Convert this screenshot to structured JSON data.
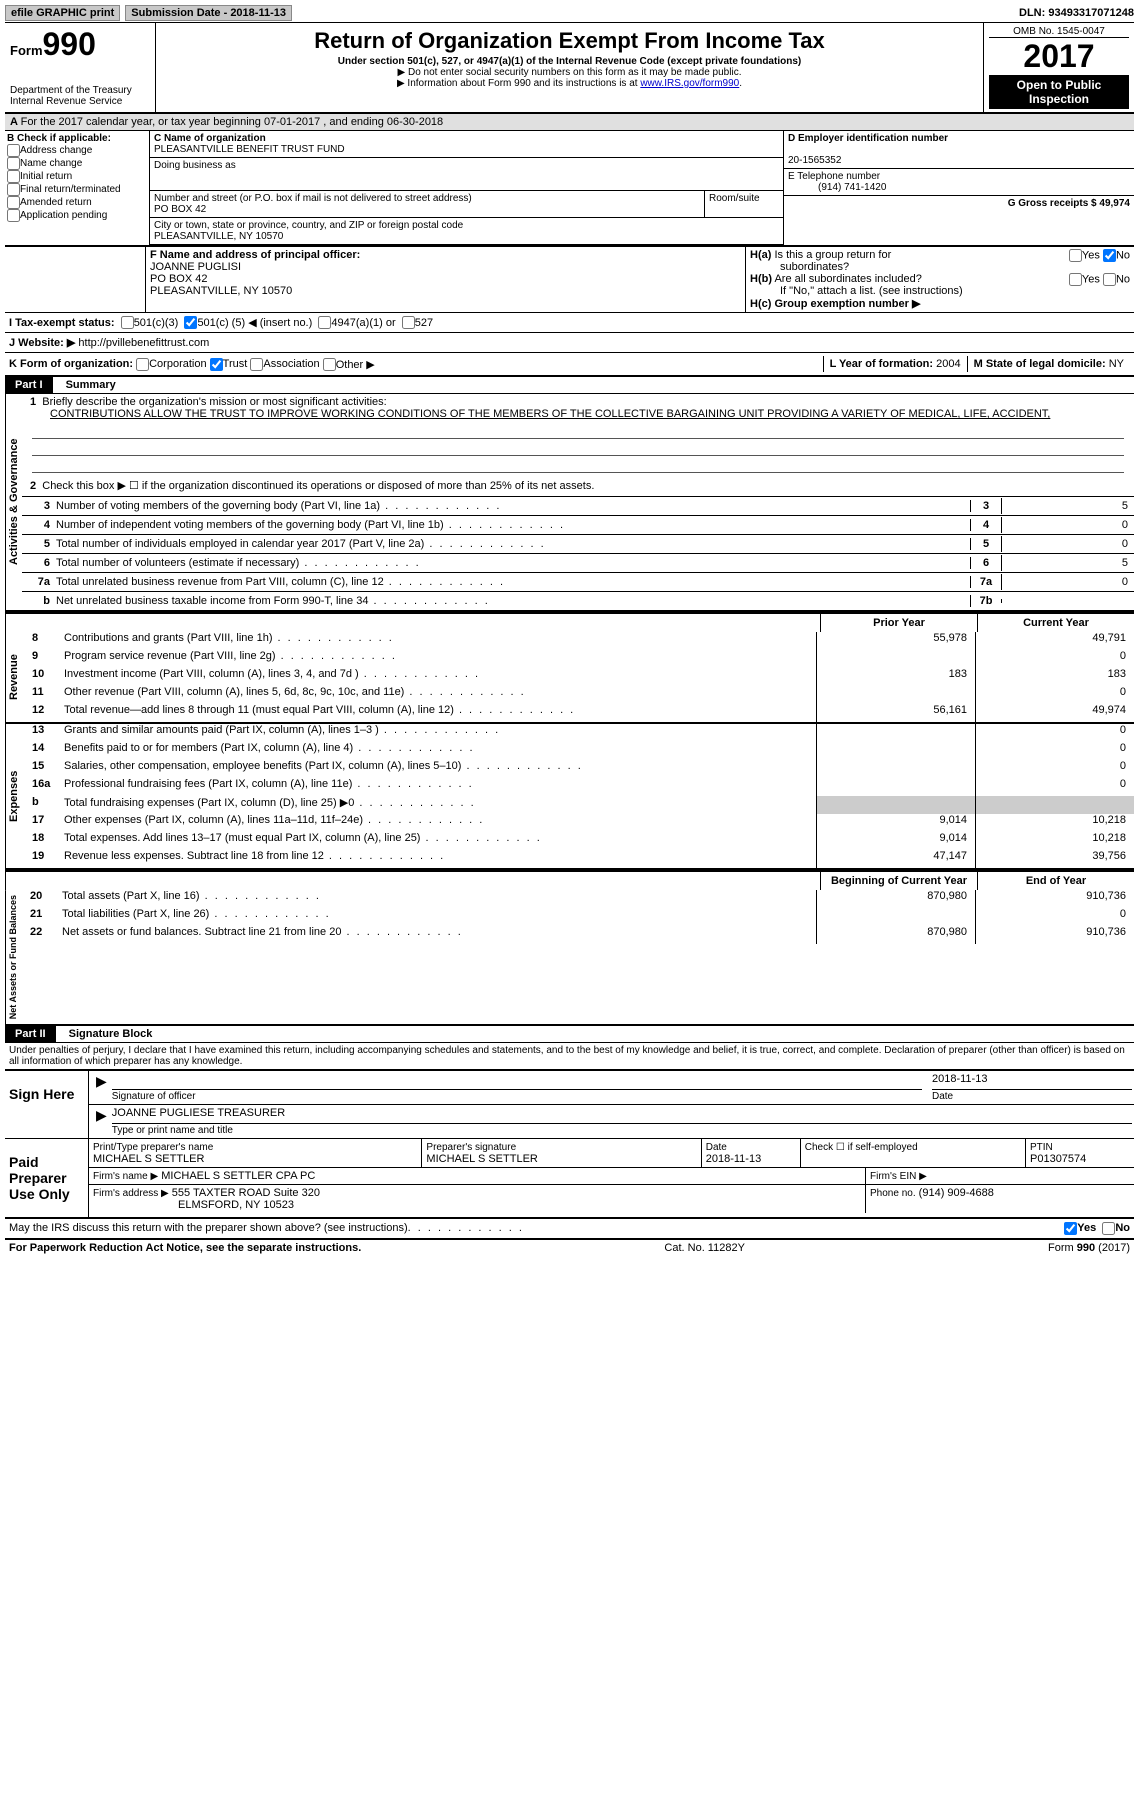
{
  "top_bar": {
    "efile": "efile GRAPHIC print",
    "submission": "Submission Date - 2018-11-13",
    "dln": "DLN: 93493317071248"
  },
  "header": {
    "form_small": "Form",
    "form": "990",
    "dept": "Department of the Treasury\nInternal Revenue Service",
    "title": "Return of Organization Exempt From Income Tax",
    "sub1": "Under section 501(c), 527, or 4947(a)(1) of the Internal Revenue Code (except private foundations)",
    "sub2": "▶ Do not enter social security numbers on this form as it may be made public.",
    "sub3": "▶ Information about Form 990 and its instructions is at ",
    "sub3_link": "www.IRS.gov/form990",
    "omb": "OMB No. 1545-0047",
    "year": "2017",
    "open": "Open to Public Inspection"
  },
  "section_a": {
    "text": "For the 2017 calendar year, or tax year beginning 07-01-2017    , and ending 06-30-2018"
  },
  "entity": {
    "b_label": "B Check if applicable:",
    "check_addr": "Address change",
    "check_name": "Name change",
    "check_init": "Initial return",
    "check_final": "Final return/terminated",
    "check_amend": "Amended return",
    "check_app": "Application pending",
    "c_label": "C Name of organization",
    "c_value": "PLEASANTVILLE BENEFIT TRUST FUND",
    "dba": "Doing business as",
    "street_label": "Number and street (or P.O. box if mail is not delivered to street address)",
    "room": "Room/suite",
    "street": "PO BOX 42",
    "city_label": "City or town, state or province, country, and ZIP or foreign postal code",
    "city": "PLEASANTVILLE, NY  10570",
    "d_label": "D Employer identification number",
    "d_value": "20-1565352",
    "e_label": "E Telephone number",
    "e_value": "(914) 741-1420",
    "g_label": "G Gross receipts $",
    "g_value": "49,974",
    "f_label": "F Name and address of principal officer:",
    "f_name": "JOANNE PUGLISI",
    "f_street": "PO BOX 42",
    "f_city": "PLEASANTVILLE, NY  10570",
    "ha_label": "H(a) Is this a group return for subordinates?",
    "hb_label": "H(b) Are all subordinates included?",
    "hb_note": "If \"No,\" attach a list. (see instructions)",
    "hc_label": "H(c) Group exemption number ▶"
  },
  "status": {
    "i_label": "I  Tax-exempt status:",
    "o1": "501(c)(3)",
    "o2_pre": "501(c) (",
    "o2_val": "5",
    "o2_post": ") ◀ (insert no.)",
    "o3": "4947(a)(1) or",
    "o4": "527"
  },
  "website": {
    "label": "J  Website: ▶",
    "value": "http://pvillebenefittrust.com"
  },
  "korg": {
    "label": "K Form of organization:",
    "o1": "Corporation",
    "o2": "Trust",
    "o3": "Association",
    "o4": "Other ▶",
    "l_label": "L Year of formation:",
    "l_val": "2004",
    "m_label": "M State of legal domicile:",
    "m_val": "NY"
  },
  "part1": {
    "header": "Part I",
    "title": "Summary",
    "line1_label": "Briefly describe the organization's mission or most significant activities:",
    "line1_val": "CONTRIBUTIONS ALLOW THE TRUST TO IMPROVE WORKING CONDITIONS OF THE MEMBERS OF THE COLLECTIVE BARGAINING UNIT PROVIDING A VARIETY OF MEDICAL, LIFE, ACCIDENT,",
    "line2": "Check this box ▶ ☐ if the organization discontinued its operations or disposed of more than 25% of its net assets.",
    "rot_ag": "Activities & Governance",
    "rot_rev": "Revenue",
    "rot_exp": "Expenses",
    "rot_net": "Net Assets or Fund Balances",
    "rows_ag": [
      {
        "n": "3",
        "t": "Number of voting members of the governing body (Part VI, line 1a)",
        "c": "3",
        "v": "5"
      },
      {
        "n": "4",
        "t": "Number of independent voting members of the governing body (Part VI, line 1b)",
        "c": "4",
        "v": "0"
      },
      {
        "n": "5",
        "t": "Total number of individuals employed in calendar year 2017 (Part V, line 2a)",
        "c": "5",
        "v": "0"
      },
      {
        "n": "6",
        "t": "Total number of volunteers (estimate if necessary)",
        "c": "6",
        "v": "5"
      },
      {
        "n": "7a",
        "t": "Total unrelated business revenue from Part VIII, column (C), line 12",
        "c": "7a",
        "v": "0"
      },
      {
        "n": "b",
        "t": "Net unrelated business taxable income from Form 990-T, line 34",
        "c": "7b",
        "v": ""
      }
    ],
    "col_prior": "Prior Year",
    "col_current": "Current Year",
    "rows_rev": [
      {
        "n": "8",
        "t": "Contributions and grants (Part VIII, line 1h)",
        "p": "55,978",
        "c": "49,791"
      },
      {
        "n": "9",
        "t": "Program service revenue (Part VIII, line 2g)",
        "p": "",
        "c": "0"
      },
      {
        "n": "10",
        "t": "Investment income (Part VIII, column (A), lines 3, 4, and 7d )",
        "p": "183",
        "c": "183"
      },
      {
        "n": "11",
        "t": "Other revenue (Part VIII, column (A), lines 5, 6d, 8c, 9c, 10c, and 11e)",
        "p": "",
        "c": "0"
      },
      {
        "n": "12",
        "t": "Total revenue—add lines 8 through 11 (must equal Part VIII, column (A), line 12)",
        "p": "56,161",
        "c": "49,974"
      }
    ],
    "rows_exp": [
      {
        "n": "13",
        "t": "Grants and similar amounts paid (Part IX, column (A), lines 1–3 )",
        "p": "",
        "c": "0"
      },
      {
        "n": "14",
        "t": "Benefits paid to or for members (Part IX, column (A), line 4)",
        "p": "",
        "c": "0"
      },
      {
        "n": "15",
        "t": "Salaries, other compensation, employee benefits (Part IX, column (A), lines 5–10)",
        "p": "",
        "c": "0"
      },
      {
        "n": "16a",
        "t": "Professional fundraising fees (Part IX, column (A), line 11e)",
        "p": "",
        "c": "0"
      },
      {
        "n": "b",
        "t": "Total fundraising expenses (Part IX, column (D), line 25) ▶0",
        "p": "gray",
        "c": "gray"
      },
      {
        "n": "17",
        "t": "Other expenses (Part IX, column (A), lines 11a–11d, 11f–24e)",
        "p": "9,014",
        "c": "10,218"
      },
      {
        "n": "18",
        "t": "Total expenses. Add lines 13–17 (must equal Part IX, column (A), line 25)",
        "p": "9,014",
        "c": "10,218"
      },
      {
        "n": "19",
        "t": "Revenue less expenses. Subtract line 18 from line 12",
        "p": "47,147",
        "c": "39,756"
      }
    ],
    "col_begin": "Beginning of Current Year",
    "col_end": "End of Year",
    "rows_na": [
      {
        "n": "20",
        "t": "Total assets (Part X, line 16)",
        "p": "870,980",
        "c": "910,736"
      },
      {
        "n": "21",
        "t": "Total liabilities (Part X, line 26)",
        "p": "",
        "c": "0"
      },
      {
        "n": "22",
        "t": "Net assets or fund balances. Subtract line 21 from line 20",
        "p": "870,980",
        "c": "910,736"
      }
    ]
  },
  "part2": {
    "header": "Part II",
    "title": "Signature Block",
    "decl": "Under penalties of perjury, I declare that I have examined this return, including accompanying schedules and statements, and to the best of my knowledge and belief, it is true, correct, and complete. Declaration of preparer (other than officer) is based on all information of which preparer has any knowledge.",
    "sign_here": "Sign Here",
    "sig_officer": "Signature of officer",
    "date": "Date",
    "date_val": "2018-11-13",
    "officer_name": "JOANNE PUGLIESE TREASURER",
    "type_name": "Type or print name and title",
    "paid": "Paid Preparer Use Only",
    "prep_name_l": "Print/Type preparer's name",
    "prep_name": "MICHAEL S SETTLER",
    "prep_sig_l": "Preparer's signature",
    "prep_sig": "MICHAEL S SETTLER",
    "prep_date_l": "Date",
    "prep_date": "2018-11-13",
    "check_l": "Check ☐ if self-employed",
    "ptin_l": "PTIN",
    "ptin": "P01307574",
    "firm_l": "Firm's name      ▶",
    "firm": "MICHAEL S SETTLER CPA PC",
    "ein_l": "Firm's EIN ▶",
    "addr_l": "Firm's address ▶",
    "addr": "555 TAXTER ROAD Suite 320",
    "addr2": "ELMSFORD, NY  10523",
    "phone_l": "Phone no.",
    "phone": "(914) 909-4688",
    "discuss": "May the IRS discuss this return with the preparer shown above? (see instructions)",
    "yes": "Yes",
    "no": "No"
  },
  "footer": {
    "pra": "For Paperwork Reduction Act Notice, see the separate instructions.",
    "cat": "Cat. No. 11282Y",
    "form": "Form 990 (2017)"
  }
}
